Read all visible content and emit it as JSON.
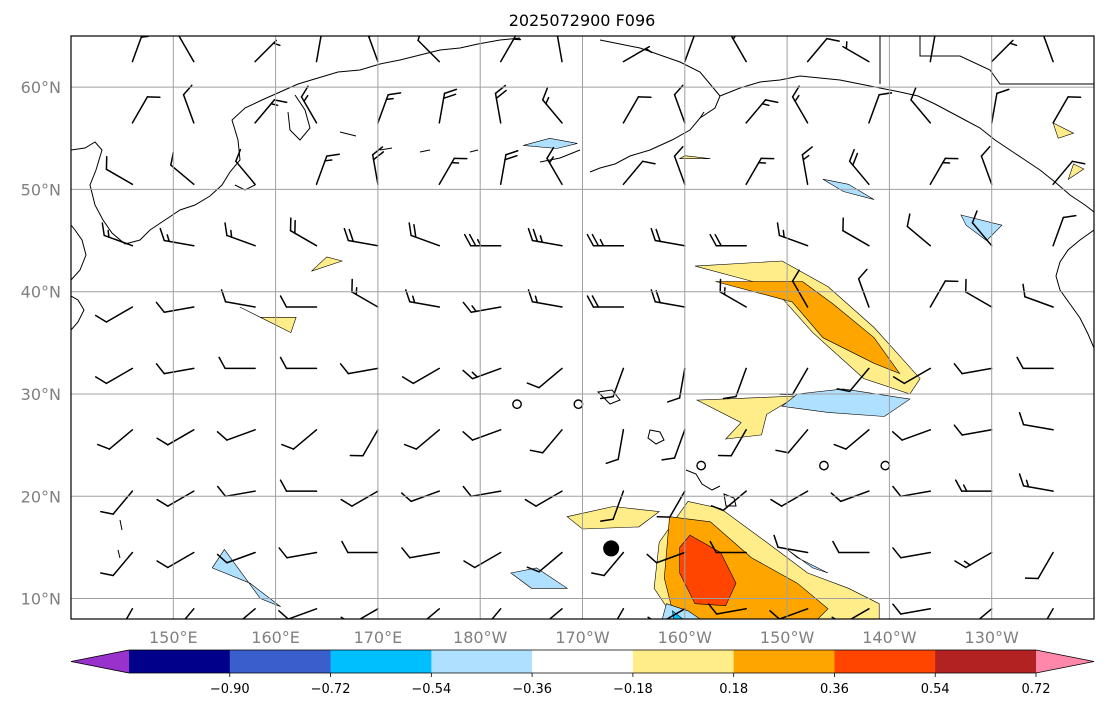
{
  "title": "2025072900 F096",
  "map": {
    "lon_range": [
      140,
      240
    ],
    "lat_range": [
      8,
      65
    ],
    "lat_ticks": [
      10,
      20,
      30,
      40,
      50,
      60
    ],
    "lat_labels": [
      "10°N",
      "20°N",
      "30°N",
      "40°N",
      "50°N",
      "60°N"
    ],
    "lon_ticks": [
      150,
      160,
      170,
      180,
      190,
      200,
      210,
      220,
      230
    ],
    "lon_labels": [
      "150°E",
      "160°E",
      "170°E",
      "180°W",
      "170°W",
      "160°W",
      "150°W",
      "140°W",
      "130°W"
    ],
    "grid": true
  },
  "colorbar": {
    "levels": [
      -0.9,
      -0.72,
      -0.54,
      -0.36,
      -0.18,
      0.18,
      0.36,
      0.54,
      0.72,
      0.9
    ],
    "labels": [
      "−0.90",
      "−0.72",
      "−0.54",
      "−0.36",
      "−0.18",
      "0.18",
      "0.36",
      "0.54",
      "0.72",
      "0.90"
    ],
    "colors": [
      "#9932cc",
      "#00008b",
      "#3a5fcd",
      "#00bfff",
      "#b0e0ff",
      "#ffffff",
      "#ffed8a",
      "#ffa500",
      "#ff4500",
      "#b22222",
      "#ff88aa"
    ],
    "extend": "both"
  },
  "storm_marker": {
    "lon": 192.8,
    "lat": 14.9
  },
  "calm_circles": [
    {
      "lon": 183.6,
      "lat": 29.0
    },
    {
      "lon": 189.6,
      "lat": 29.0
    },
    {
      "lon": 201.6,
      "lat": 23.0
    },
    {
      "lon": 213.6,
      "lat": 23.0
    },
    {
      "lon": 219.6,
      "lat": 23.0
    }
  ],
  "contours": [
    {
      "color": "#ffed8a",
      "pts": [
        [
          200.3,
          19.5
        ],
        [
          203.5,
          18.8
        ],
        [
          208,
          15.5
        ],
        [
          212,
          12.5
        ],
        [
          216,
          11.0
        ],
        [
          219,
          9.5
        ],
        [
          219,
          8
        ],
        [
          199,
          8
        ],
        [
          197,
          11
        ],
        [
          197.5,
          15.5
        ]
      ]
    },
    {
      "color": "#ffa500",
      "pts": [
        [
          198.5,
          18.0
        ],
        [
          202.5,
          17.5
        ],
        [
          206.5,
          14.0
        ],
        [
          211,
          11.5
        ],
        [
          214,
          9.0
        ],
        [
          213,
          8
        ],
        [
          199,
          8
        ],
        [
          198,
          12
        ],
        [
          198.3,
          15.5
        ]
      ]
    },
    {
      "color": "#ff4500",
      "pts": [
        [
          200.5,
          16.2
        ],
        [
          203.5,
          14.5
        ],
        [
          205,
          11.5
        ],
        [
          204,
          9.3
        ],
        [
          201,
          9.5
        ],
        [
          199.5,
          12.5
        ],
        [
          199.5,
          15.0
        ]
      ]
    },
    {
      "color": "#b0e0ff",
      "pts": [
        [
          198.2,
          9.5
        ],
        [
          200.3,
          8.8
        ],
        [
          201.5,
          8
        ],
        [
          197.8,
          8
        ]
      ]
    },
    {
      "color": "#00bfff",
      "pts": [
        [
          198.8,
          8.8
        ],
        [
          199.8,
          8.0
        ],
        [
          198.9,
          8.0
        ]
      ]
    },
    {
      "color": "#ffed8a",
      "pts": [
        [
          209.5,
          43.0
        ],
        [
          214.0,
          40.5
        ],
        [
          218.5,
          36.5
        ],
        [
          223.0,
          31.5
        ],
        [
          222.0,
          30.0
        ],
        [
          217.5,
          31.5
        ],
        [
          212.5,
          36.0
        ],
        [
          208.5,
          40.5
        ],
        [
          201.0,
          42.5
        ]
      ]
    },
    {
      "color": "#ffa500",
      "pts": [
        [
          211.5,
          41.0
        ],
        [
          214.5,
          38.8
        ],
        [
          218.5,
          35.5
        ],
        [
          221.0,
          32.0
        ],
        [
          218.5,
          33.0
        ],
        [
          213.5,
          35.5
        ],
        [
          210.5,
          39.0
        ],
        [
          203.0,
          41.0
        ]
      ]
    },
    {
      "color": "#ffed8a",
      "pts": [
        [
          193.0,
          19.0
        ],
        [
          197.5,
          18.5
        ],
        [
          195.5,
          17.0
        ],
        [
          190.0,
          16.8
        ],
        [
          188.5,
          18.0
        ]
      ]
    },
    {
      "color": "#ffed8a",
      "pts": [
        [
          211,
          29.8
        ],
        [
          201.2,
          29.4
        ],
        [
          205.5,
          27.2
        ],
        [
          204,
          25.6
        ],
        [
          207.5,
          26.0
        ],
        [
          208,
          28.0
        ]
      ]
    },
    {
      "color": "#ffed8a",
      "pts": [
        [
          162.0,
          37.5
        ],
        [
          158.5,
          37.5
        ],
        [
          156.5,
          38.5
        ],
        [
          161.5,
          36.0
        ]
      ]
    },
    {
      "color": "#ffed8a",
      "pts": [
        [
          166.5,
          43.0
        ],
        [
          163.5,
          42.0
        ],
        [
          165.0,
          43.4
        ]
      ]
    },
    {
      "color": "#b0e0ff",
      "pts": [
        [
          155.0,
          14.8
        ],
        [
          158.5,
          10.0
        ],
        [
          160.5,
          9.2
        ],
        [
          157.5,
          11.5
        ],
        [
          153.8,
          13.0
        ]
      ]
    },
    {
      "color": "#b0e0ff",
      "pts": [
        [
          185.5,
          13.0
        ],
        [
          188.5,
          11.0
        ],
        [
          185.0,
          11.0
        ],
        [
          183.0,
          12.5
        ]
      ]
    },
    {
      "color": "#b0e0ff",
      "pts": [
        [
          210.0,
          14.8
        ],
        [
          212.5,
          13.0
        ],
        [
          214.0,
          12.5
        ],
        [
          211.0,
          14.0
        ]
      ]
    },
    {
      "color": "#b0e0ff",
      "pts": [
        [
          211.0,
          30.0
        ],
        [
          215.5,
          30.5
        ],
        [
          222.0,
          29.5
        ],
        [
          219.5,
          27.8
        ],
        [
          214.0,
          28.2
        ],
        [
          209.5,
          28.8
        ]
      ]
    },
    {
      "color": "#b0e0ff",
      "pts": [
        [
          213.5,
          51.0
        ],
        [
          216.0,
          50.5
        ],
        [
          218.5,
          49.0
        ],
        [
          215.5,
          49.8
        ]
      ]
    },
    {
      "color": "#b0e0ff",
      "pts": [
        [
          227.0,
          47.5
        ],
        [
          231.0,
          46.5
        ],
        [
          229.5,
          45.0
        ],
        [
          227.5,
          46.5
        ]
      ]
    },
    {
      "color": "#b0e0ff",
      "pts": [
        [
          186.8,
          55.0
        ],
        [
          189.5,
          54.5
        ],
        [
          187.5,
          54.0
        ],
        [
          184.2,
          54.3
        ]
      ]
    },
    {
      "color": "#ffed8a",
      "pts": [
        [
          236.0,
          56.5
        ],
        [
          238.0,
          55.5
        ],
        [
          236.5,
          55.0
        ]
      ]
    },
    {
      "color": "#ffed8a",
      "pts": [
        [
          237.5,
          51.0
        ],
        [
          239.0,
          52.0
        ],
        [
          238.0,
          52.5
        ]
      ]
    },
    {
      "color": "#ffed8a",
      "pts": [
        [
          200.0,
          53.3
        ],
        [
          202.5,
          53.0
        ],
        [
          199.5,
          53.0
        ]
      ]
    }
  ],
  "barbs": [
    [
      146,
      62.5,
      5,
      20
    ],
    [
      152,
      62.5,
      10,
      -30
    ],
    [
      158,
      62.5,
      5,
      45
    ],
    [
      164,
      62.5,
      10,
      10
    ],
    [
      170,
      62.5,
      5,
      -20
    ],
    [
      176,
      62.5,
      10,
      -45
    ],
    [
      182,
      62.5,
      5,
      30
    ],
    [
      188,
      62.5,
      10,
      -10
    ],
    [
      194,
      62.5,
      5,
      60
    ],
    [
      200,
      62.5,
      10,
      20
    ],
    [
      206,
      62.5,
      5,
      -30
    ],
    [
      212,
      62.5,
      10,
      40
    ],
    [
      218,
      62.5,
      5,
      -60
    ],
    [
      224,
      62.5,
      10,
      10
    ],
    [
      230,
      62.5,
      5,
      45
    ],
    [
      236,
      62.5,
      10,
      -20
    ],
    [
      146,
      56.5,
      10,
      30
    ],
    [
      152,
      56.5,
      10,
      -20
    ],
    [
      158,
      56.5,
      15,
      40
    ],
    [
      164,
      56.5,
      15,
      -30
    ],
    [
      170,
      56.5,
      15,
      20
    ],
    [
      176,
      56.5,
      20,
      10
    ],
    [
      182,
      56.5,
      20,
      -10
    ],
    [
      188,
      56.5,
      15,
      -40
    ],
    [
      194,
      56.5,
      10,
      30
    ],
    [
      200,
      56.5,
      10,
      -20
    ],
    [
      206,
      56.5,
      15,
      40
    ],
    [
      212,
      56.5,
      15,
      -30
    ],
    [
      218,
      56.5,
      10,
      20
    ],
    [
      224,
      56.5,
      10,
      -40
    ],
    [
      230,
      56.5,
      10,
      10
    ],
    [
      236,
      56.5,
      10,
      30
    ],
    [
      146,
      50.5,
      10,
      -60
    ],
    [
      152,
      50.5,
      10,
      -50
    ],
    [
      158,
      50.5,
      10,
      -40
    ],
    [
      164,
      50.5,
      15,
      20
    ],
    [
      170,
      50.5,
      20,
      -10
    ],
    [
      176,
      50.5,
      15,
      30
    ],
    [
      182,
      50.5,
      20,
      10
    ],
    [
      188,
      50.5,
      15,
      -30
    ],
    [
      194,
      50.5,
      10,
      40
    ],
    [
      200,
      50.5,
      10,
      -20
    ],
    [
      206,
      50.5,
      15,
      30
    ],
    [
      212,
      50.5,
      15,
      -10
    ],
    [
      218,
      50.5,
      20,
      -40
    ],
    [
      224,
      50.5,
      15,
      30
    ],
    [
      230,
      50.5,
      10,
      -20
    ],
    [
      236,
      50.5,
      10,
      40
    ],
    [
      146,
      44.5,
      15,
      -70
    ],
    [
      152,
      44.5,
      15,
      -80
    ],
    [
      158,
      44.5,
      15,
      -70
    ],
    [
      164,
      44.5,
      20,
      -60
    ],
    [
      170,
      44.5,
      20,
      -80
    ],
    [
      176,
      44.5,
      20,
      -70
    ],
    [
      182,
      44.5,
      25,
      -90
    ],
    [
      188,
      44.5,
      25,
      -80
    ],
    [
      194,
      44.5,
      25,
      -90
    ],
    [
      200,
      44.5,
      20,
      -80
    ],
    [
      206,
      44.5,
      20,
      -90
    ],
    [
      212,
      44.5,
      15,
      -70
    ],
    [
      218,
      44.5,
      10,
      -60
    ],
    [
      224,
      44.5,
      10,
      -50
    ],
    [
      230,
      44.5,
      10,
      -40
    ],
    [
      236,
      44.5,
      10,
      20
    ],
    [
      146,
      38.5,
      10,
      -120
    ],
    [
      152,
      38.5,
      10,
      -100
    ],
    [
      158,
      38.5,
      10,
      -80
    ],
    [
      164,
      38.5,
      10,
      -90
    ],
    [
      170,
      38.5,
      15,
      -60
    ],
    [
      176,
      38.5,
      15,
      -80
    ],
    [
      182,
      38.5,
      15,
      -100
    ],
    [
      188,
      38.5,
      15,
      -80
    ],
    [
      194,
      38.5,
      20,
      -90
    ],
    [
      200,
      38.5,
      20,
      -80
    ],
    [
      206,
      38.5,
      15,
      -60
    ],
    [
      212,
      38.5,
      10,
      -30
    ],
    [
      218,
      38.5,
      10,
      -20
    ],
    [
      224,
      38.5,
      10,
      30
    ],
    [
      230,
      38.5,
      10,
      -60
    ],
    [
      236,
      38.5,
      10,
      -70
    ],
    [
      146,
      32.5,
      10,
      -120
    ],
    [
      152,
      32.5,
      10,
      -100
    ],
    [
      158,
      32.5,
      10,
      -90
    ],
    [
      164,
      32.5,
      10,
      -90
    ],
    [
      170,
      32.5,
      10,
      -100
    ],
    [
      176,
      32.5,
      10,
      -120
    ],
    [
      182,
      32.5,
      15,
      -110
    ],
    [
      188,
      32.5,
      10,
      -130
    ],
    [
      194,
      32.5,
      10,
      -160
    ],
    [
      200,
      32.5,
      10,
      -170
    ],
    [
      206,
      32.5,
      10,
      -160
    ],
    [
      212,
      32.5,
      10,
      -150
    ],
    [
      218,
      32.5,
      10,
      -140
    ],
    [
      224,
      32.5,
      10,
      -120
    ],
    [
      230,
      32.5,
      10,
      -100
    ],
    [
      236,
      32.5,
      10,
      -90
    ],
    [
      146,
      26.5,
      10,
      -130
    ],
    [
      152,
      26.5,
      10,
      -120
    ],
    [
      158,
      26.5,
      10,
      -110
    ],
    [
      164,
      26.5,
      10,
      -130
    ],
    [
      170,
      26.5,
      10,
      -150
    ],
    [
      176,
      26.5,
      10,
      -130
    ],
    [
      182,
      26.5,
      10,
      -110
    ],
    [
      188,
      26.5,
      10,
      -140
    ],
    [
      194,
      26.5,
      10,
      -170
    ],
    [
      200,
      26.5,
      10,
      -160
    ],
    [
      206,
      26.5,
      10,
      -150
    ],
    [
      212,
      26.5,
      10,
      -140
    ],
    [
      218,
      26.5,
      10,
      -130
    ],
    [
      224,
      26.5,
      10,
      -110
    ],
    [
      230,
      26.5,
      10,
      -100
    ],
    [
      236,
      26.5,
      10,
      -80
    ],
    [
      146,
      20.5,
      10,
      -140
    ],
    [
      152,
      20.5,
      10,
      -120
    ],
    [
      158,
      20.5,
      10,
      -100
    ],
    [
      164,
      20.5,
      10,
      -90
    ],
    [
      170,
      20.5,
      10,
      -120
    ],
    [
      176,
      20.5,
      10,
      -110
    ],
    [
      182,
      20.5,
      10,
      -100
    ],
    [
      188,
      20.5,
      10,
      -120
    ],
    [
      194,
      20.5,
      10,
      -160
    ],
    [
      200,
      20.5,
      10,
      -150
    ],
    [
      206,
      20.5,
      10,
      -130
    ],
    [
      212,
      20.5,
      10,
      -120
    ],
    [
      218,
      20.5,
      10,
      -110
    ],
    [
      224,
      20.5,
      10,
      -100
    ],
    [
      230,
      20.5,
      15,
      -90
    ],
    [
      236,
      20.5,
      15,
      -80
    ],
    [
      146,
      14.5,
      10,
      -140
    ],
    [
      152,
      14.5,
      10,
      -120
    ],
    [
      158,
      14.5,
      10,
      -110
    ],
    [
      164,
      14.5,
      10,
      -100
    ],
    [
      170,
      14.5,
      10,
      -90
    ],
    [
      176,
      14.5,
      10,
      -100
    ],
    [
      182,
      14.5,
      10,
      -120
    ],
    [
      188,
      14.5,
      10,
      -130
    ],
    [
      194,
      14.5,
      10,
      -140
    ],
    [
      200,
      14.5,
      10,
      -110
    ],
    [
      206,
      14.5,
      10,
      -90
    ],
    [
      212,
      14.5,
      10,
      -80
    ],
    [
      218,
      14.5,
      10,
      -90
    ],
    [
      224,
      14.5,
      10,
      -100
    ],
    [
      230,
      14.5,
      15,
      -120
    ],
    [
      236,
      14.5,
      10,
      -150
    ],
    [
      146,
      9,
      10,
      -150
    ],
    [
      152,
      9,
      10,
      -140
    ],
    [
      158,
      9,
      10,
      -130
    ],
    [
      164,
      9,
      10,
      -110
    ],
    [
      170,
      9,
      10,
      -120
    ],
    [
      176,
      9,
      10,
      -130
    ],
    [
      182,
      9,
      10,
      -140
    ],
    [
      188,
      9,
      10,
      -130
    ],
    [
      194,
      9,
      10,
      -150
    ],
    [
      200,
      9,
      10,
      -120
    ],
    [
      206,
      9,
      10,
      -100
    ],
    [
      212,
      9,
      10,
      -110
    ],
    [
      218,
      9,
      10,
      -120
    ],
    [
      224,
      9,
      10,
      -100
    ],
    [
      230,
      9,
      10,
      -130
    ],
    [
      236,
      9,
      10,
      -150
    ]
  ]
}
